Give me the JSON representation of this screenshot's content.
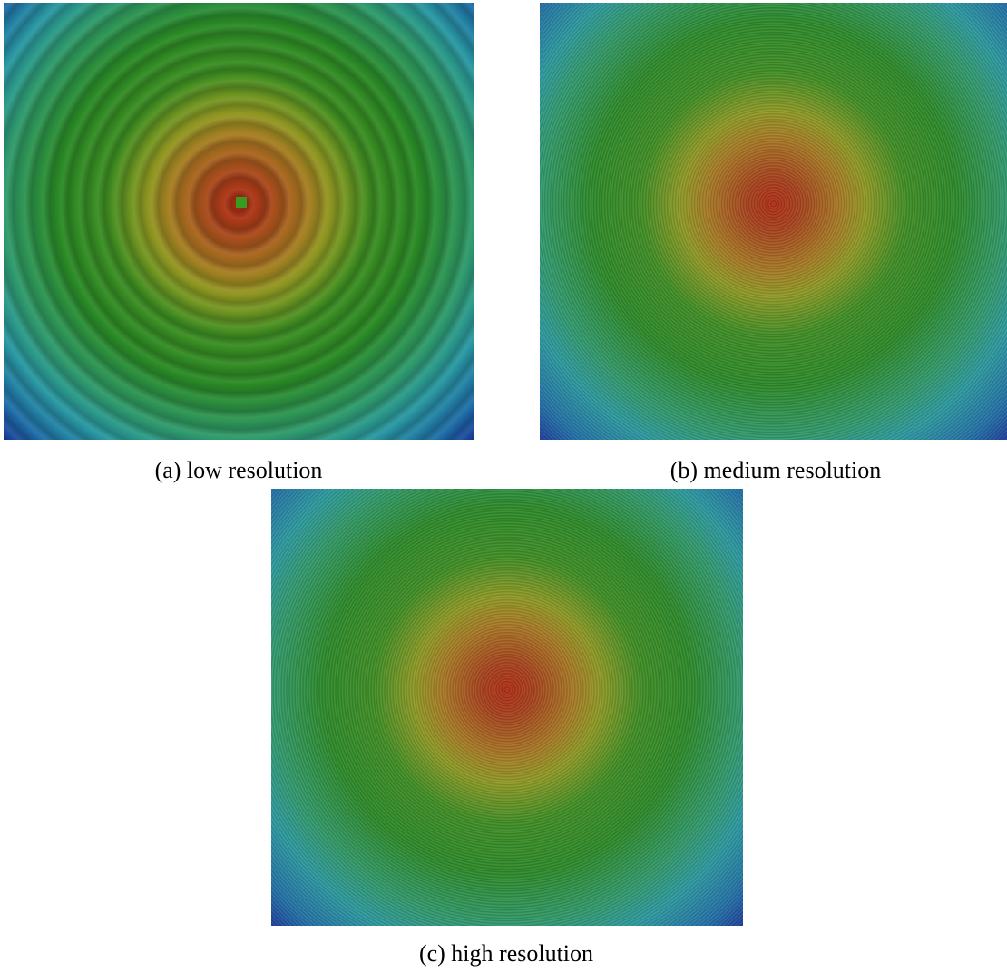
{
  "figure": {
    "panels": [
      {
        "caption": "(a) low resolution"
      },
      {
        "caption": "(b) medium resolution"
      },
      {
        "caption": "(c) high resolution"
      }
    ]
  }
}
